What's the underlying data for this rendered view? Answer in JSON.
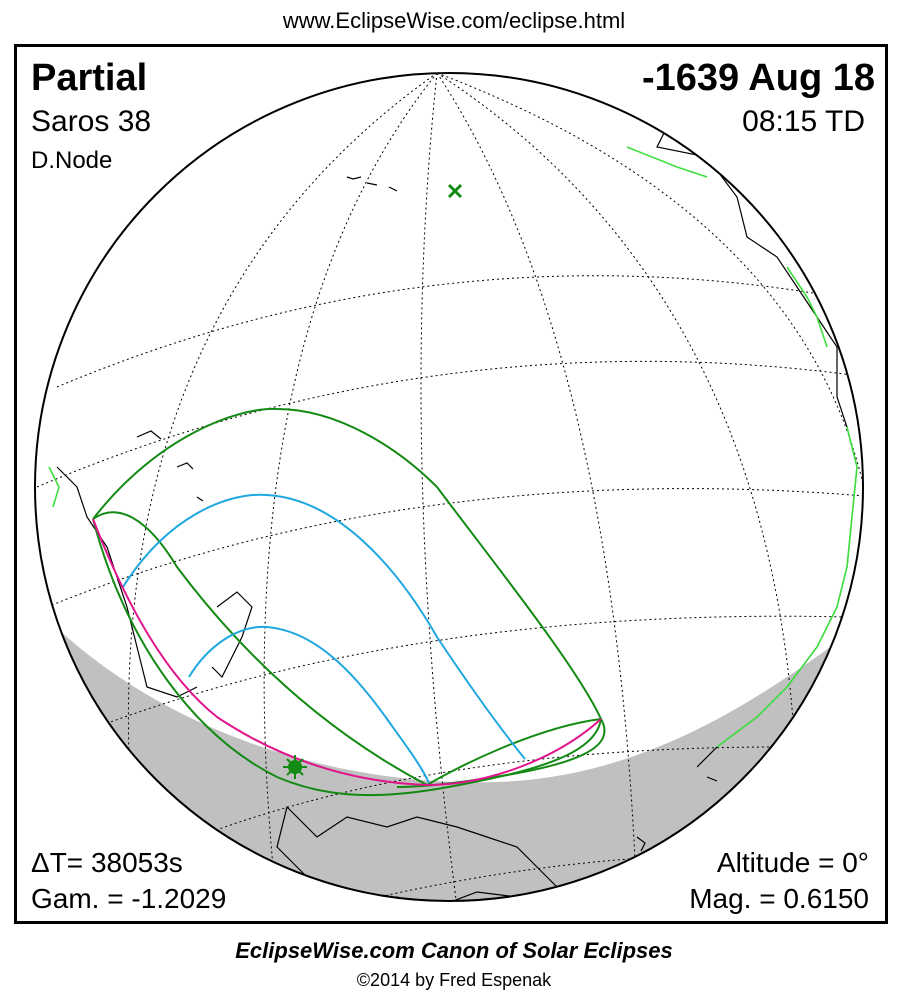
{
  "header": {
    "url": "www.EclipseWise.com/eclipse.html"
  },
  "eclipse": {
    "type": "Partial",
    "saros": "Saros  38",
    "node": "D.Node",
    "date": "-1639 Aug 18",
    "time": "08:15 TD",
    "delta_t": "ΔT=  38053s",
    "gamma": "Gam. = -1.2029",
    "altitude": "Altitude =  0°",
    "magnitude": "Mag. = 0.6150"
  },
  "footer": {
    "canon": "EclipseWise.com Canon of Solar Eclipses",
    "copyright": "©2014 by Fred Espenak"
  },
  "colors": {
    "penumbra_limits": "#138a13",
    "magnitude_curves": "#1fa7e0",
    "sunrise_sunset_curve": "#e0148c",
    "night_shade": "#c0c0c0",
    "coastline_highlight": "#3ee03e"
  },
  "markers": {
    "greatest_eclipse": "cross-marker",
    "sub_solar": "sun-star-marker"
  }
}
